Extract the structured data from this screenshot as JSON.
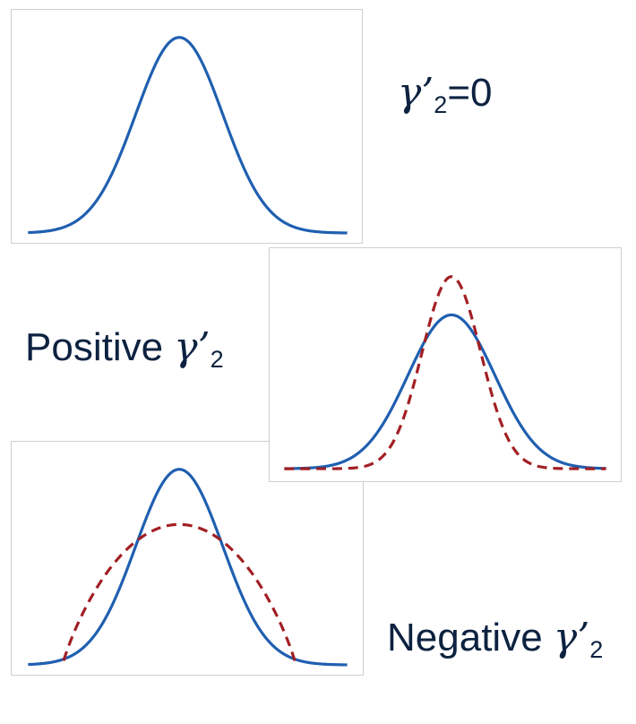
{
  "labels": {
    "normal": {
      "gamma": "γ’",
      "sub": "2",
      "suffix": "=0"
    },
    "positive": {
      "prefix": "Positive ",
      "gamma": "γ’",
      "sub": "2"
    },
    "negative": {
      "prefix": "Negative ",
      "gamma": "γ’",
      "sub": "2"
    }
  },
  "colors": {
    "reference_curve": "#1f5fb0",
    "comparison_curve": "#a11f24",
    "text": "#0d2240",
    "panel_border": "#cfcfcf"
  },
  "curves": {
    "normal": "gaussian, excess kurtosis 0",
    "positive": "leptokurtic, taller narrower peak with heavier tails",
    "negative": "platykurtic, flatter wider peak with lighter tails"
  }
}
